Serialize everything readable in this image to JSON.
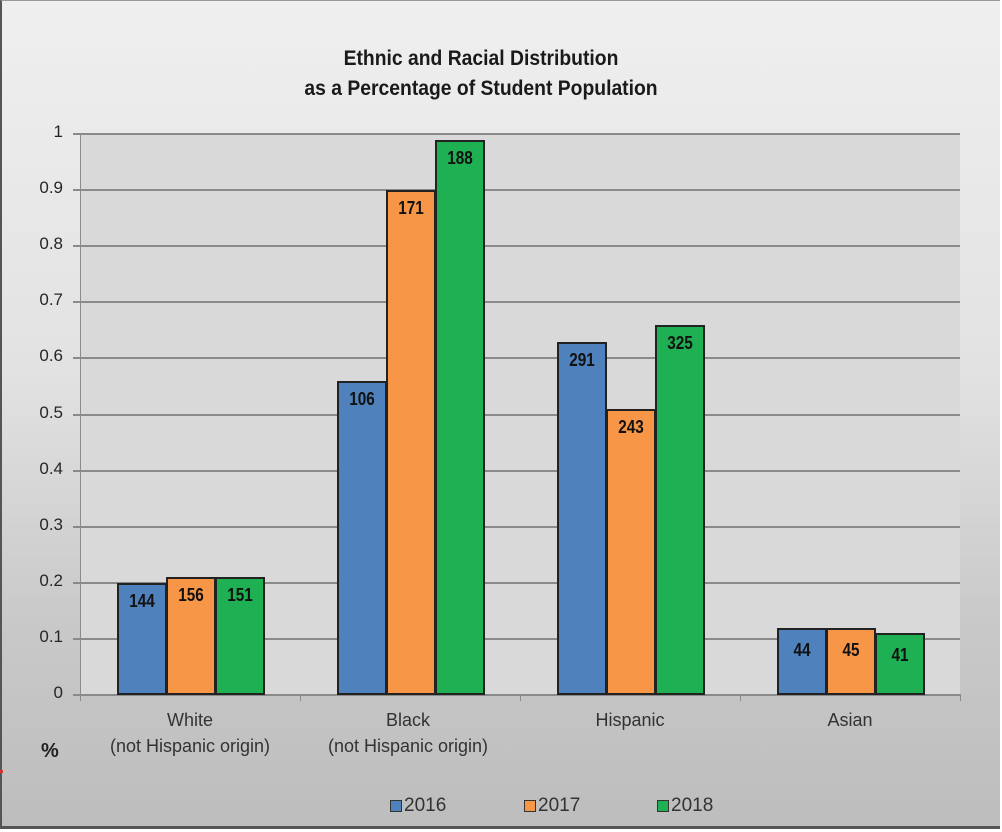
{
  "chart_data": {
    "type": "bar",
    "title": "Ethnic and Racial Distribution\nas a Percentage of Student Population",
    "title_lines": [
      "Ethnic and Racial Distribution",
      "as a Percentage of Student Population"
    ],
    "xlabel": "",
    "ylabel": "%",
    "ylim": [
      0,
      1
    ],
    "yticks": [
      "0",
      "0.1",
      "0.2",
      "0.3",
      "0.4",
      "0.5",
      "0.6",
      "0.7",
      "0.8",
      "0.9",
      "1"
    ],
    "grid": true,
    "legend_position": "bottom",
    "categories": [
      {
        "line1": "White",
        "line2": "(not Hispanic origin)"
      },
      {
        "line1": "Black",
        "line2": "(not Hispanic origin)"
      },
      {
        "line1": "Hispanic",
        "line2": ""
      },
      {
        "line1": "Asian",
        "line2": ""
      }
    ],
    "series": [
      {
        "name": "2016",
        "color": "#4f81bd",
        "values": [
          0.2,
          0.56,
          0.63,
          0.12
        ],
        "data_labels": [
          "144",
          "106",
          "291",
          "44"
        ]
      },
      {
        "name": "2017",
        "color": "#f79646",
        "values": [
          0.21,
          0.9,
          0.51,
          0.12
        ],
        "data_labels": [
          "156",
          "171",
          "243",
          "45"
        ]
      },
      {
        "name": "2018",
        "color": "#1eb052",
        "values": [
          0.21,
          0.99,
          0.66,
          0.11
        ],
        "data_labels": [
          "151",
          "188",
          "325",
          "41"
        ]
      }
    ]
  }
}
